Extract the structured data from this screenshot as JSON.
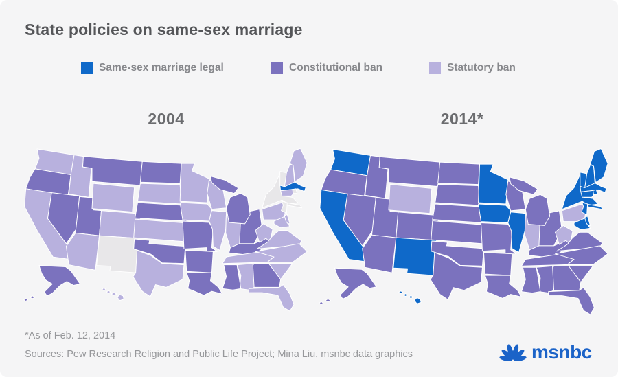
{
  "header": {
    "title": "State policies on same-sex marriage"
  },
  "footer": {
    "note": "*As of Feb. 12, 2014",
    "sources": "Sources: Pew Research Religion and Public Life Project; Mina Liu, msnbc data graphics",
    "logo_text": "msnbc"
  },
  "chart_data": {
    "type": "choropleth-map-pair",
    "title": "State policies on same-sex marriage",
    "legend_position": "top",
    "no_policy_color": "#e8e7e9",
    "background_color": "#f5f5f6",
    "categories": [
      {
        "key": "legal",
        "label": "Same-sex marriage legal",
        "color": "#0f69c9"
      },
      {
        "key": "constitutional",
        "label": "Constitutional ban",
        "color": "#7b72be"
      },
      {
        "key": "statutory",
        "label": "Statutory ban",
        "color": "#b8b1de"
      }
    ],
    "maps": [
      {
        "year": "2004",
        "states": {
          "WA": "statutory",
          "OR": "constitutional",
          "CA": "statutory",
          "NV": "constitutional",
          "ID": "statutory",
          "UT": "constitutional",
          "AZ": "statutory",
          "MT": "constitutional",
          "WY": "statutory",
          "CO": "statutory",
          "NM": "none",
          "ND": "constitutional",
          "SD": "statutory",
          "NE": "constitutional",
          "KS": "statutory",
          "OK": "constitutional",
          "TX": "statutory",
          "MN": "statutory",
          "IA": "statutory",
          "MO": "constitutional",
          "AR": "constitutional",
          "LA": "constitutional",
          "WI": "statutory",
          "IL": "statutory",
          "MI": "constitutional",
          "IN": "statutory",
          "OH": "constitutional",
          "KY": "constitutional",
          "TN": "statutory",
          "MS": "constitutional",
          "AL": "statutory",
          "GA": "constitutional",
          "FL": "statutory",
          "SC": "statutory",
          "NC": "statutory",
          "VA": "statutory",
          "WV": "statutory",
          "MD": "statutory",
          "DE": "statutory",
          "PA": "statutory",
          "NJ": "none",
          "NY": "none",
          "CT": "statutory",
          "RI": "none",
          "MA": "legal",
          "VT": "none",
          "NH": "statutory",
          "ME": "statutory",
          "AK": "constitutional",
          "HI": "statutory"
        }
      },
      {
        "year": "2014*",
        "states": {
          "WA": "legal",
          "OR": "constitutional",
          "CA": "legal",
          "NV": "constitutional",
          "ID": "constitutional",
          "UT": "constitutional",
          "AZ": "constitutional",
          "MT": "constitutional",
          "WY": "statutory",
          "CO": "constitutional",
          "NM": "legal",
          "ND": "constitutional",
          "SD": "constitutional",
          "NE": "constitutional",
          "KS": "constitutional",
          "OK": "constitutional",
          "TX": "constitutional",
          "MN": "legal",
          "IA": "legal",
          "MO": "constitutional",
          "AR": "constitutional",
          "LA": "constitutional",
          "WI": "constitutional",
          "IL": "legal",
          "MI": "constitutional",
          "IN": "statutory",
          "OH": "constitutional",
          "KY": "constitutional",
          "TN": "constitutional",
          "MS": "constitutional",
          "AL": "constitutional",
          "GA": "constitutional",
          "FL": "constitutional",
          "SC": "constitutional",
          "NC": "constitutional",
          "VA": "constitutional",
          "WV": "statutory",
          "MD": "legal",
          "DE": "legal",
          "PA": "statutory",
          "NJ": "legal",
          "NY": "legal",
          "CT": "legal",
          "RI": "legal",
          "MA": "legal",
          "VT": "legal",
          "NH": "legal",
          "ME": "legal",
          "AK": "constitutional",
          "HI": "legal"
        }
      }
    ]
  }
}
